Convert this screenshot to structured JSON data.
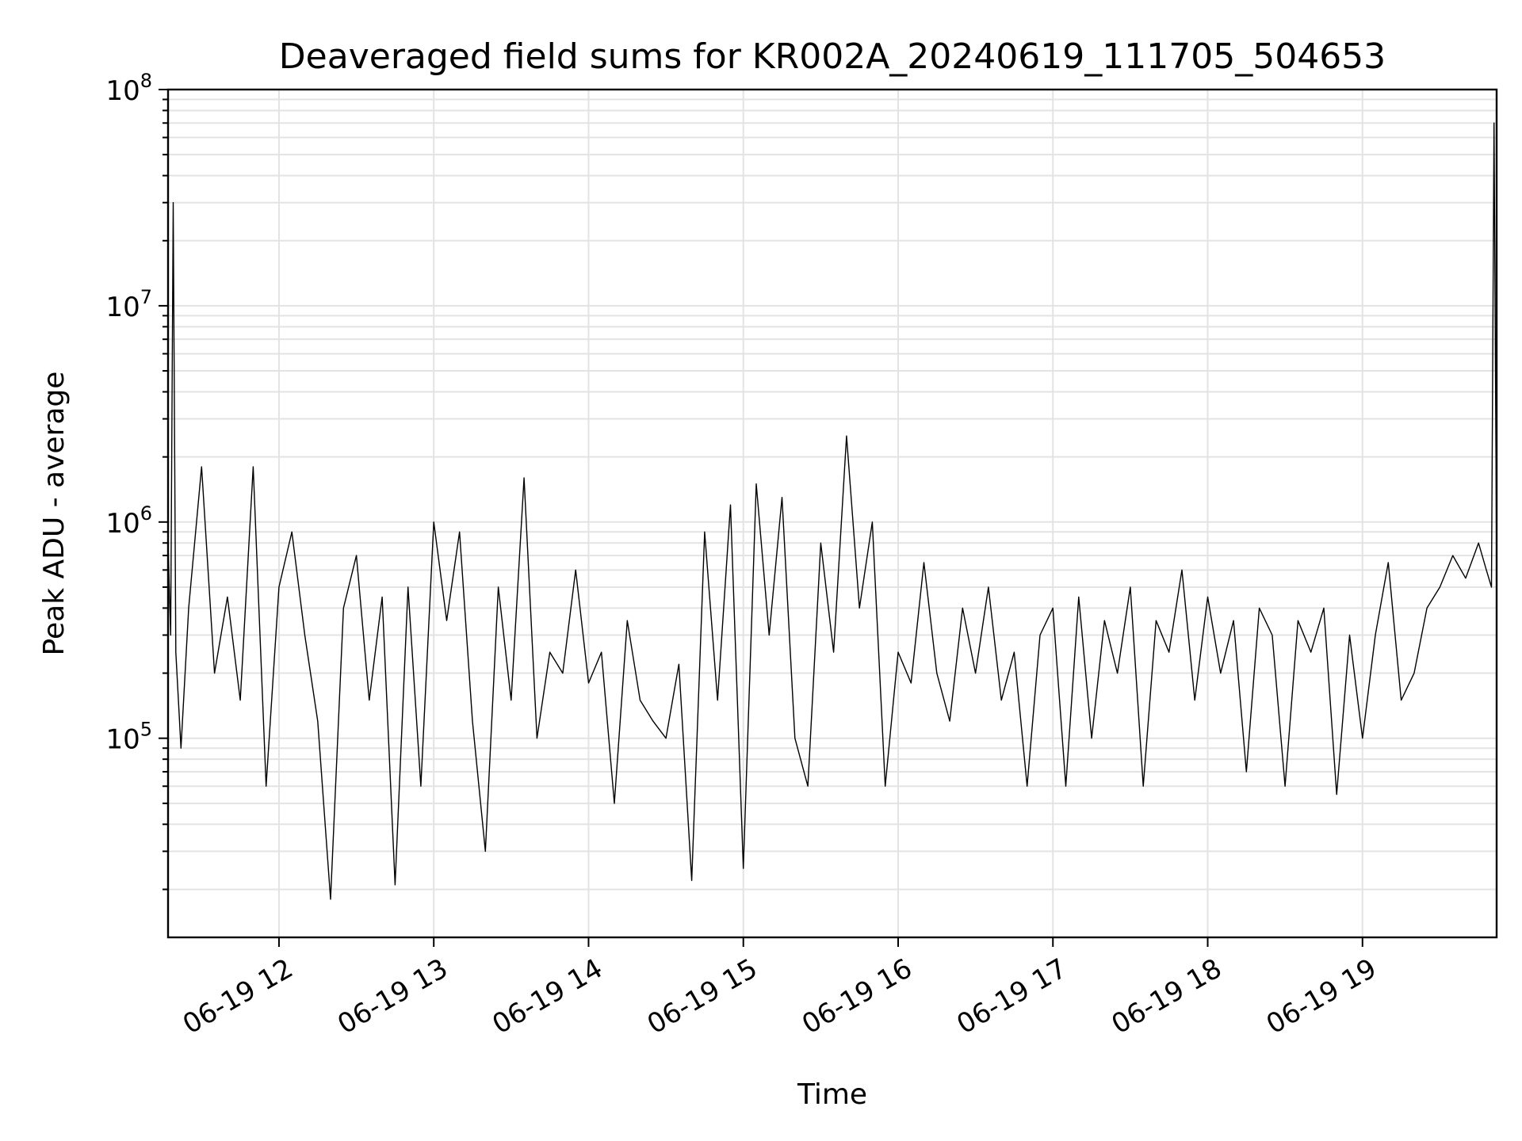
{
  "chart_data": {
    "type": "line",
    "title": "Deaveraged field sums for KR002A_20240619_111705_504653",
    "xlabel": "Time",
    "ylabel": "Peak ADU - average",
    "yscale": "log",
    "xlim": [
      "2024-06-19 11:17",
      "2024-06-19 19:52"
    ],
    "ylim": [
      12000,
      100000000
    ],
    "grid": true,
    "legend": "none",
    "x_ticks": [
      {
        "value": "2024-06-19 12:00",
        "label": "06-19 12"
      },
      {
        "value": "2024-06-19 13:00",
        "label": "06-19 13"
      },
      {
        "value": "2024-06-19 14:00",
        "label": "06-19 14"
      },
      {
        "value": "2024-06-19 15:00",
        "label": "06-19 15"
      },
      {
        "value": "2024-06-19 16:00",
        "label": "06-19 16"
      },
      {
        "value": "2024-06-19 17:00",
        "label": "06-19 17"
      },
      {
        "value": "2024-06-19 18:00",
        "label": "06-19 18"
      },
      {
        "value": "2024-06-19 19:00",
        "label": "06-19 19"
      }
    ],
    "y_ticks": [
      {
        "value": 100000,
        "base": "10",
        "exp": "5"
      },
      {
        "value": 1000000,
        "base": "10",
        "exp": "6"
      },
      {
        "value": 10000000,
        "base": "10",
        "exp": "7"
      },
      {
        "value": 100000000,
        "base": "10",
        "exp": "8"
      }
    ],
    "series_color": "#000000",
    "x": [
      "2024-06-19 11:17",
      "2024-06-19 11:18",
      "2024-06-19 11:19",
      "2024-06-19 11:20",
      "2024-06-19 11:22",
      "2024-06-19 11:25",
      "2024-06-19 11:30",
      "2024-06-19 11:35",
      "2024-06-19 11:40",
      "2024-06-19 11:45",
      "2024-06-19 11:50",
      "2024-06-19 11:55",
      "2024-06-19 12:00",
      "2024-06-19 12:05",
      "2024-06-19 12:10",
      "2024-06-19 12:15",
      "2024-06-19 12:20",
      "2024-06-19 12:25",
      "2024-06-19 12:30",
      "2024-06-19 12:35",
      "2024-06-19 12:40",
      "2024-06-19 12:45",
      "2024-06-19 12:50",
      "2024-06-19 12:55",
      "2024-06-19 13:00",
      "2024-06-19 13:05",
      "2024-06-19 13:10",
      "2024-06-19 13:15",
      "2024-06-19 13:20",
      "2024-06-19 13:25",
      "2024-06-19 13:30",
      "2024-06-19 13:35",
      "2024-06-19 13:40",
      "2024-06-19 13:45",
      "2024-06-19 13:50",
      "2024-06-19 13:55",
      "2024-06-19 14:00",
      "2024-06-19 14:05",
      "2024-06-19 14:10",
      "2024-06-19 14:15",
      "2024-06-19 14:20",
      "2024-06-19 14:25",
      "2024-06-19 14:30",
      "2024-06-19 14:35",
      "2024-06-19 14:40",
      "2024-06-19 14:45",
      "2024-06-19 14:50",
      "2024-06-19 14:55",
      "2024-06-19 15:00",
      "2024-06-19 15:05",
      "2024-06-19 15:10",
      "2024-06-19 15:15",
      "2024-06-19 15:20",
      "2024-06-19 15:25",
      "2024-06-19 15:30",
      "2024-06-19 15:35",
      "2024-06-19 15:40",
      "2024-06-19 15:45",
      "2024-06-19 15:50",
      "2024-06-19 15:55",
      "2024-06-19 16:00",
      "2024-06-19 16:05",
      "2024-06-19 16:10",
      "2024-06-19 16:15",
      "2024-06-19 16:20",
      "2024-06-19 16:25",
      "2024-06-19 16:30",
      "2024-06-19 16:35",
      "2024-06-19 16:40",
      "2024-06-19 16:45",
      "2024-06-19 16:50",
      "2024-06-19 16:55",
      "2024-06-19 17:00",
      "2024-06-19 17:05",
      "2024-06-19 17:10",
      "2024-06-19 17:15",
      "2024-06-19 17:20",
      "2024-06-19 17:25",
      "2024-06-19 17:30",
      "2024-06-19 17:35",
      "2024-06-19 17:40",
      "2024-06-19 17:45",
      "2024-06-19 17:50",
      "2024-06-19 17:55",
      "2024-06-19 18:00",
      "2024-06-19 18:05",
      "2024-06-19 18:10",
      "2024-06-19 18:15",
      "2024-06-19 18:20",
      "2024-06-19 18:25",
      "2024-06-19 18:30",
      "2024-06-19 18:35",
      "2024-06-19 18:40",
      "2024-06-19 18:45",
      "2024-06-19 18:50",
      "2024-06-19 18:55",
      "2024-06-19 19:00",
      "2024-06-19 19:05",
      "2024-06-19 19:10",
      "2024-06-19 19:15",
      "2024-06-19 19:20",
      "2024-06-19 19:25",
      "2024-06-19 19:30",
      "2024-06-19 19:35",
      "2024-06-19 19:40",
      "2024-06-19 19:45",
      "2024-06-19 19:48",
      "2024-06-19 19:50",
      "2024-06-19 19:51",
      "2024-06-19 19:52"
    ],
    "series": [
      {
        "values": [
          800000,
          300000,
          30000000,
          250000,
          90000,
          400000,
          1800000,
          200000,
          450000,
          150000,
          1800000,
          60000,
          500000,
          900000,
          300000,
          120000,
          18000,
          400000,
          700000,
          150000,
          450000,
          21000,
          500000,
          60000,
          1000000,
          350000,
          900000,
          120000,
          30000,
          500000,
          150000,
          1600000,
          100000,
          250000,
          200000,
          600000,
          180000,
          250000,
          50000,
          350000,
          150000,
          120000,
          100000,
          220000,
          22000,
          900000,
          150000,
          1200000,
          25000,
          1500000,
          300000,
          1300000,
          100000,
          60000,
          800000,
          250000,
          2500000,
          400000,
          1000000,
          60000,
          250000,
          180000,
          650000,
          200000,
          120000,
          400000,
          200000,
          500000,
          150000,
          250000,
          60000,
          300000,
          400000,
          60000,
          450000,
          100000,
          350000,
          200000,
          500000,
          60000,
          350000,
          250000,
          600000,
          150000,
          450000,
          200000,
          350000,
          70000,
          400000,
          300000,
          60000,
          350000,
          250000,
          400000,
          55000,
          300000,
          100000,
          300000,
          650000,
          150000,
          200000,
          400000,
          500000,
          700000,
          550000,
          800000,
          600000,
          500000,
          70000000,
          600000
        ]
      }
    ]
  }
}
